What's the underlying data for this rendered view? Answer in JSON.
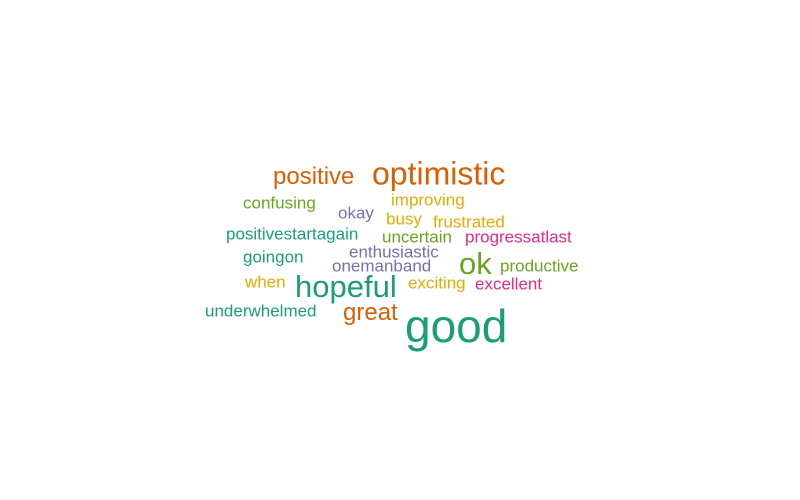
{
  "word_cloud": {
    "palette": {
      "teal": "#1b9e77",
      "orange": "#d95f02",
      "purple": "#7570b3",
      "pink": "#e7298a",
      "green": "#66a61e",
      "gold": "#e6ab02"
    },
    "words": [
      {
        "text": "good",
        "color": "teal",
        "weight": 1.0
      },
      {
        "text": "optimistic",
        "color": "orange",
        "weight": 0.72
      },
      {
        "text": "hopeful",
        "color": "teal",
        "weight": 0.72
      },
      {
        "text": "ok",
        "color": "green",
        "weight": 0.72
      },
      {
        "text": "great",
        "color": "orange",
        "weight": 0.55
      },
      {
        "text": "positive",
        "color": "orange",
        "weight": 0.55
      },
      {
        "text": "confusing",
        "color": "green",
        "weight": 0.38
      },
      {
        "text": "improving",
        "color": "gold",
        "weight": 0.38
      },
      {
        "text": "okay",
        "color": "purple",
        "weight": 0.38
      },
      {
        "text": "busy",
        "color": "gold",
        "weight": 0.38
      },
      {
        "text": "frustrated",
        "color": "gold",
        "weight": 0.38
      },
      {
        "text": "positivestartagain",
        "color": "teal",
        "weight": 0.38
      },
      {
        "text": "uncertain",
        "color": "green",
        "weight": 0.38
      },
      {
        "text": "progressatlast",
        "color": "pink",
        "weight": 0.38
      },
      {
        "text": "enthusiastic",
        "color": "purple",
        "weight": 0.38
      },
      {
        "text": "goingon",
        "color": "teal",
        "weight": 0.38
      },
      {
        "text": "onemanband",
        "color": "purple",
        "weight": 0.38
      },
      {
        "text": "productive",
        "color": "green",
        "weight": 0.38
      },
      {
        "text": "when",
        "color": "gold",
        "weight": 0.38
      },
      {
        "text": "exciting",
        "color": "gold",
        "weight": 0.38
      },
      {
        "text": "excellent",
        "color": "pink",
        "weight": 0.38
      },
      {
        "text": "underwhelmed",
        "color": "teal",
        "weight": 0.38
      }
    ]
  }
}
